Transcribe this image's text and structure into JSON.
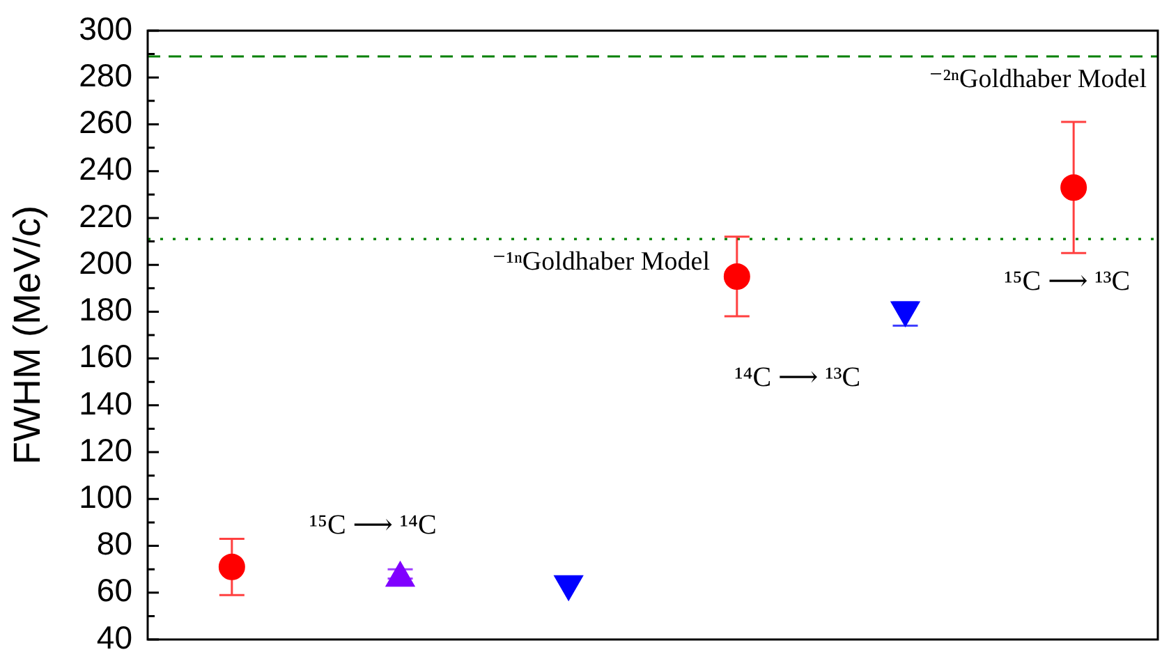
{
  "chart_data": {
    "type": "scatter",
    "ylabel": "FWHM (MeV/c)",
    "categories": [
      null,
      null,
      null,
      null,
      null,
      null
    ],
    "series": [
      {
        "color": "#ff0000",
        "marker": "circle",
        "values": [
          71,
          null,
          null,
          195,
          null,
          233
        ],
        "errors": [
          12,
          null,
          null,
          17,
          null,
          28
        ]
      },
      {
        "color": "#8000ff",
        "marker": "triangle",
        "values": [
          null,
          68,
          null,
          null,
          null,
          null
        ],
        "errors": [
          null,
          2,
          null,
          null,
          null,
          null
        ]
      },
      {
        "color": "#0000ff",
        "marker": "triangle-down",
        "values": [
          null,
          null,
          62,
          null,
          179,
          null
        ],
        "errors": [
          null,
          null,
          null,
          null,
          5,
          null
        ]
      }
    ],
    "ylim": [
      40,
      300
    ],
    "yticks": [
      40,
      {
        "value": 50,
        "label": null
      },
      60,
      {
        "value": 70,
        "label": null
      },
      80,
      {
        "value": 90,
        "label": null
      },
      100,
      {
        "value": 110,
        "label": null
      },
      120,
      {
        "value": 130,
        "label": null
      },
      140,
      {
        "value": 150,
        "label": null
      },
      160,
      {
        "value": 170,
        "label": null
      },
      180,
      {
        "value": 190,
        "label": null
      },
      200,
      {
        "value": 210,
        "label": null
      },
      220,
      {
        "value": 230,
        "label": null
      },
      240,
      {
        "value": 250,
        "label": null
      },
      260,
      {
        "value": 270,
        "label": null
      },
      280,
      {
        "value": 290,
        "label": null
      },
      300
    ],
    "ref_lines": [
      {
        "axis": "y",
        "value": 289,
        "label": "⁻²ⁿGoldhaber Model",
        "color": "#008000",
        "line_style": "dashed"
      },
      {
        "axis": "y",
        "value": 211,
        "label": "⁻¹ⁿGoldhaber Model",
        "color": "#008000",
        "line_style": "dotted"
      }
    ],
    "annotations": [
      "¹⁵C ⟶ ¹⁴C",
      "¹⁴C ⟶ ¹³C",
      "¹⁵C ⟶ ¹³C"
    ],
    "tick_labels": "y"
  }
}
